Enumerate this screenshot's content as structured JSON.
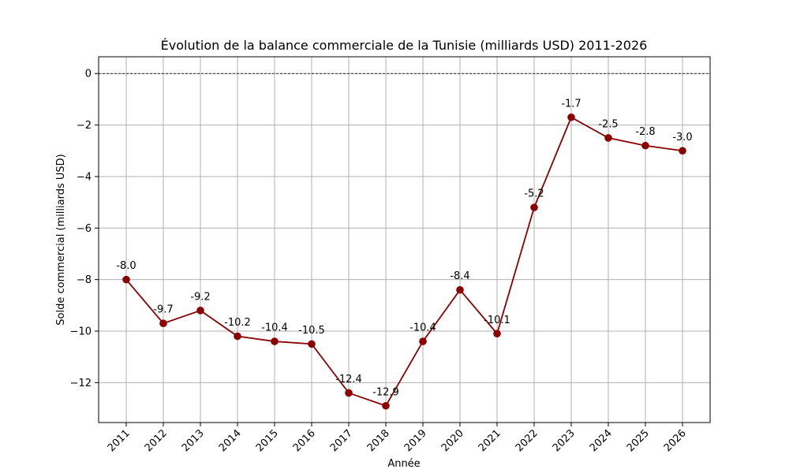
{
  "chart_data": {
    "type": "line",
    "title": "Évolution de la balance commerciale de la Tunisie (milliards USD) 2011-2026",
    "xlabel": "Année",
    "ylabel": "Solde commercial (milliards USD)",
    "x": [
      "2011",
      "2012",
      "2013",
      "2014",
      "2015",
      "2016",
      "2017",
      "2018",
      "2019",
      "2020",
      "2021",
      "2022",
      "2023",
      "2024",
      "2025",
      "2026"
    ],
    "series": [
      {
        "values": [
          -8.0,
          -9.7,
          -9.2,
          -10.2,
          -10.4,
          -10.5,
          -12.4,
          -12.9,
          -10.4,
          -8.4,
          -10.1,
          -5.2,
          -1.7,
          -2.5,
          -2.8,
          -3.0
        ],
        "color": "#8b0000",
        "marker": "circle"
      }
    ],
    "data_labels": [
      "-8.0",
      "-9.7",
      "-9.2",
      "-10.2",
      "-10.4",
      "-10.5",
      "-12.4",
      "-12.9",
      "-10.4",
      "-8.4",
      "-10.1",
      "-5.2",
      "-1.7",
      "-2.5",
      "-2.8",
      "-3.0"
    ],
    "y_ticks": [
      0,
      -2,
      -4,
      -6,
      -8,
      -10,
      -12
    ],
    "y_tick_labels": [
      "0",
      "−2",
      "−4",
      "−6",
      "−8",
      "−10",
      "−12"
    ],
    "ylim": [
      -13.55,
      0.65
    ],
    "grid": true,
    "reference_line": {
      "y": 0,
      "style": "dashed",
      "color": "#000000"
    }
  }
}
